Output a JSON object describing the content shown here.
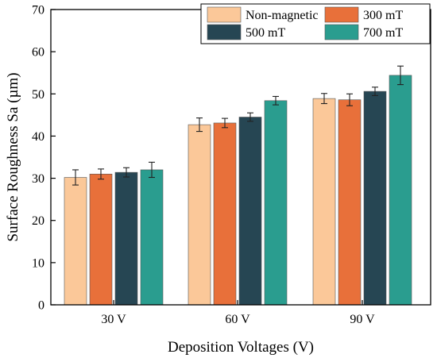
{
  "chart_data": {
    "type": "bar",
    "title": "",
    "xlabel": "Deposition Voltages (V)",
    "ylabel": "Surface Roughness Sa (µm)",
    "ylim": [
      0,
      70
    ],
    "yticks": [
      "0",
      "10",
      "20",
      "30",
      "40",
      "50",
      "60",
      "70"
    ],
    "categories": [
      "30 V",
      "60 V",
      "90 V"
    ],
    "series": [
      {
        "name": "Non-magnetic",
        "color": "#fbc899",
        "values": [
          30.2,
          42.7,
          48.9
        ],
        "errors": [
          1.8,
          1.6,
          1.2
        ]
      },
      {
        "name": "300 mT",
        "color": "#e8703a",
        "values": [
          31.0,
          43.1,
          48.6
        ],
        "errors": [
          1.2,
          1.1,
          1.4
        ]
      },
      {
        "name": "500 mT",
        "color": "#264653",
        "values": [
          31.4,
          44.5,
          50.6
        ],
        "errors": [
          1.1,
          1.0,
          1.0
        ]
      },
      {
        "name": "700 mT",
        "color": "#2a9d8f",
        "values": [
          32.0,
          48.4,
          54.4
        ],
        "errors": [
          1.8,
          1.0,
          2.2
        ]
      }
    ],
    "legend_position": "top-right",
    "grid": false,
    "error_bars": true
  }
}
